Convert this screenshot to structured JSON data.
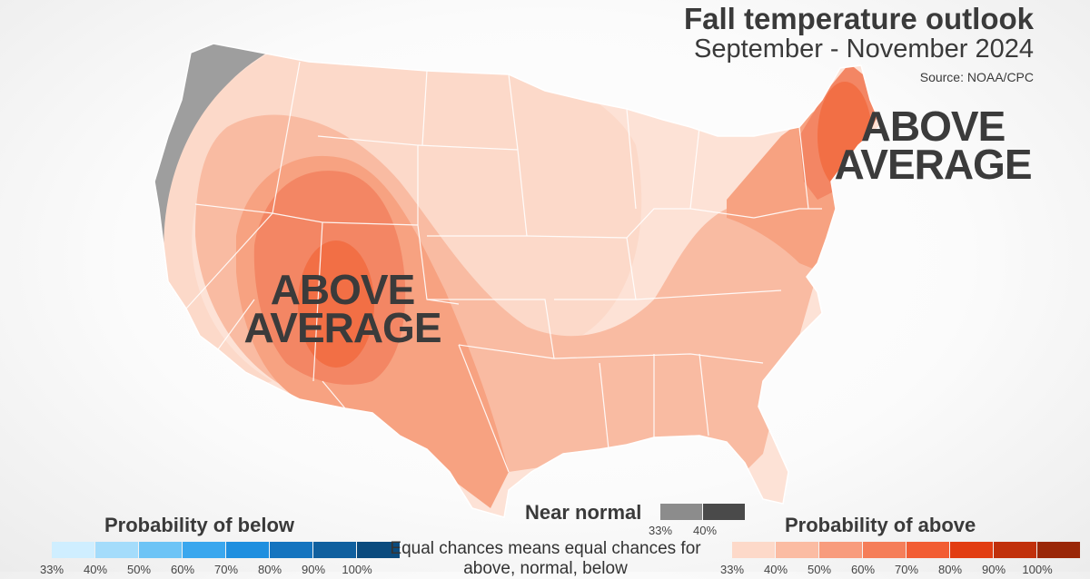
{
  "header": {
    "title": "Fall temperature outlook",
    "subtitle": "September - November 2024",
    "source": "Source: NOAA/CPC"
  },
  "map": {
    "labels": {
      "west": [
        "ABOVE",
        "AVERAGE"
      ],
      "northeast": [
        "ABOVE",
        "AVERAGE"
      ]
    },
    "colors": {
      "land": "#fde2d6",
      "near_normal": "#9e9e9e",
      "above_33": "#fcd9c9",
      "above_40": "#f9bba2",
      "above_50": "#f7a281",
      "above_60": "#f38664",
      "state_line": "#ffffff"
    }
  },
  "legend": {
    "below": {
      "title": "Probability of below",
      "ticks": [
        "33%",
        "40%",
        "50%",
        "60%",
        "70%",
        "80%",
        "90%",
        "100%"
      ],
      "colors": [
        "#cfeeff",
        "#a4dcfb",
        "#6dc4f6",
        "#3aa7ee",
        "#1f8fdf",
        "#1574bf",
        "#10609f",
        "#0b4b7e"
      ]
    },
    "near": {
      "title": "Near normal",
      "ticks": [
        "33%",
        "40%"
      ],
      "colors": [
        "#8c8c8c",
        "#4a4a4a"
      ]
    },
    "above": {
      "title": "Probability of above",
      "ticks": [
        "33%",
        "40%",
        "50%",
        "60%",
        "70%",
        "80%",
        "90%",
        "100%"
      ],
      "colors": [
        "#fdd9c9",
        "#fbbca3",
        "#f89c7d",
        "#f57e59",
        "#f25d33",
        "#e23d12",
        "#c1300b",
        "#9a2708"
      ]
    },
    "note": "Equal chances means equal chances for above, normal, below"
  }
}
